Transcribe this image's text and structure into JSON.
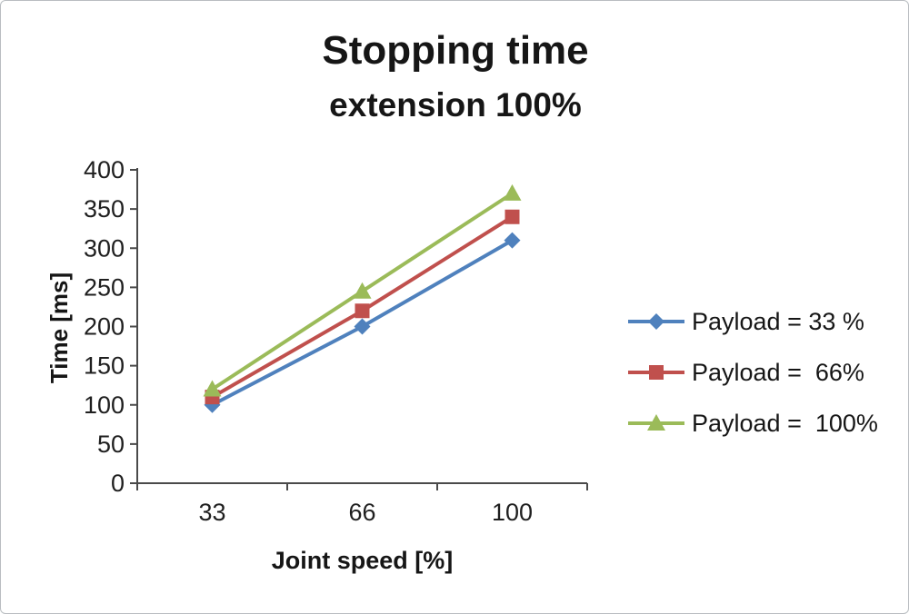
{
  "chart_data": {
    "type": "line",
    "title": "Stopping time",
    "subtitle": "extension 100%",
    "xlabel": "Joint speed [%]",
    "ylabel": "Time [ms]",
    "categories": [
      33,
      66,
      100
    ],
    "series": [
      {
        "name": "Payload = 33 %",
        "values": [
          100,
          200,
          310
        ],
        "color": "#4F81BD",
        "marker": "diamond"
      },
      {
        "name": "Payload =  66%",
        "values": [
          110,
          220,
          340
        ],
        "color": "#C0504D",
        "marker": "square"
      },
      {
        "name": "Payload =  100%",
        "values": [
          120,
          245,
          370
        ],
        "color": "#9BBB59",
        "marker": "triangle"
      }
    ],
    "ylim": [
      0,
      400
    ],
    "ytick_step": 50,
    "grid": false,
    "legend_position": "right",
    "axis_color": "#4a4a4a",
    "tick_label_color": "#1f1f1f"
  }
}
